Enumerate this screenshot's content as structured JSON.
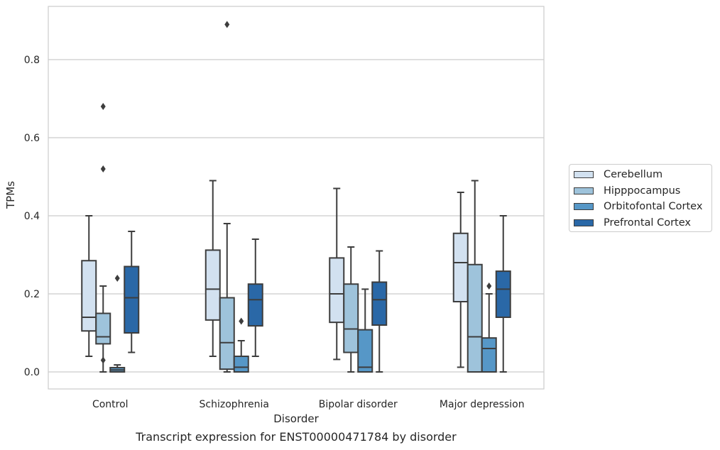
{
  "chart_data": {
    "type": "box",
    "caption": "Transcript expression for ENST00000471784 by disorder",
    "xlabel": "Disorder",
    "ylabel": "TPMs",
    "ylim": [
      -0.042,
      0.94
    ],
    "yticks": [
      0.0,
      0.2,
      0.4,
      0.6,
      0.8
    ],
    "ytick_labels": [
      "0.0",
      "0.2",
      "0.4",
      "0.6",
      "0.8"
    ],
    "grid": true,
    "legend_position": "right",
    "categories": [
      "Control",
      "Schizophrenia",
      "Bipolar disorder",
      "Major depression"
    ],
    "series": [
      {
        "name": "Cerebellum",
        "color": "#d2e1f0",
        "boxes": [
          {
            "whislo": 0.04,
            "q1": 0.105,
            "med": 0.14,
            "q3": 0.285,
            "whishi": 0.4,
            "fliers": []
          },
          {
            "whislo": 0.04,
            "q1": 0.133,
            "med": 0.212,
            "q3": 0.312,
            "whishi": 0.49,
            "fliers": []
          },
          {
            "whislo": 0.032,
            "q1": 0.127,
            "med": 0.2,
            "q3": 0.292,
            "whishi": 0.47,
            "fliers": []
          },
          {
            "whislo": 0.012,
            "q1": 0.18,
            "med": 0.28,
            "q3": 0.355,
            "whishi": 0.46,
            "fliers": []
          }
        ]
      },
      {
        "name": "Hipppocampus",
        "color": "#9ec3db",
        "boxes": [
          {
            "whislo": 0.0,
            "q1": 0.072,
            "med": 0.09,
            "q3": 0.15,
            "whishi": 0.22,
            "fliers": [
              0.68,
              0.52,
              0.03
            ]
          },
          {
            "whislo": 0.0,
            "q1": 0.007,
            "med": 0.075,
            "q3": 0.19,
            "whishi": 0.38,
            "fliers": [
              0.89
            ]
          },
          {
            "whislo": 0.0,
            "q1": 0.05,
            "med": 0.11,
            "q3": 0.225,
            "whishi": 0.32,
            "fliers": []
          },
          {
            "whislo": 0.0,
            "q1": 0.0,
            "med": 0.09,
            "q3": 0.275,
            "whishi": 0.49,
            "fliers": []
          }
        ]
      },
      {
        "name": "Orbitofontal Cortex",
        "color": "#5697c7",
        "boxes": [
          {
            "whislo": 0.0,
            "q1": 0.0,
            "med": 0.005,
            "q3": 0.011,
            "whishi": 0.018,
            "fliers": [
              0.24
            ]
          },
          {
            "whislo": 0.0,
            "q1": 0.0,
            "med": 0.012,
            "q3": 0.04,
            "whishi": 0.08,
            "fliers": [
              0.13
            ]
          },
          {
            "whislo": 0.0,
            "q1": 0.0,
            "med": 0.012,
            "q3": 0.108,
            "whishi": 0.212,
            "fliers": []
          },
          {
            "whislo": 0.0,
            "q1": 0.0,
            "med": 0.06,
            "q3": 0.087,
            "whishi": 0.2,
            "fliers": [
              0.22
            ]
          }
        ]
      },
      {
        "name": "Prefrontal Cortex",
        "color": "#2a68a7",
        "boxes": [
          {
            "whislo": 0.05,
            "q1": 0.1,
            "med": 0.19,
            "q3": 0.27,
            "whishi": 0.36,
            "fliers": []
          },
          {
            "whislo": 0.04,
            "q1": 0.118,
            "med": 0.185,
            "q3": 0.225,
            "whishi": 0.34,
            "fliers": []
          },
          {
            "whislo": 0.0,
            "q1": 0.12,
            "med": 0.185,
            "q3": 0.23,
            "whishi": 0.31,
            "fliers": []
          },
          {
            "whislo": 0.0,
            "q1": 0.14,
            "med": 0.212,
            "q3": 0.258,
            "whishi": 0.4,
            "fliers": []
          }
        ]
      }
    ]
  }
}
